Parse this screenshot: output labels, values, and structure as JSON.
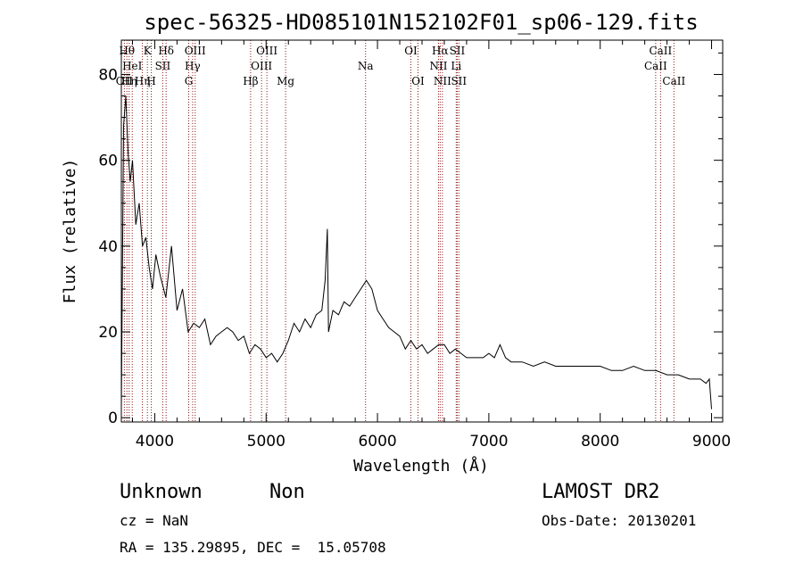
{
  "chart_data": {
    "type": "line",
    "title": "spec-56325-HD085101N152102F01_sp06-129.fits",
    "xlabel": "Wavelength (Å)",
    "ylabel": "Flux (relative)",
    "xlim": [
      3700,
      9100
    ],
    "ylim": [
      -1,
      88
    ],
    "xticks": [
      4000,
      5000,
      6000,
      7000,
      8000,
      9000
    ],
    "yticks": [
      0,
      20,
      40,
      60,
      80
    ],
    "grid": false,
    "line_color": "#000000",
    "marker_color": "#8b1a1a",
    "series": [
      {
        "x": [
          3700,
          3720,
          3740,
          3760,
          3780,
          3800,
          3830,
          3860,
          3890,
          3920,
          3950,
          3980,
          4010,
          4050,
          4100,
          4150,
          4200,
          4250,
          4300,
          4350,
          4400,
          4450,
          4500,
          4550,
          4600,
          4650,
          4700,
          4750,
          4800,
          4850,
          4900,
          4950,
          5000,
          5050,
          5100,
          5150,
          5200,
          5250,
          5300,
          5350,
          5400,
          5450,
          5500,
          5530,
          5550,
          5560,
          5600,
          5650,
          5700,
          5750,
          5800,
          5850,
          5900,
          5950,
          6000,
          6050,
          6100,
          6150,
          6200,
          6250,
          6300,
          6350,
          6400,
          6450,
          6500,
          6550,
          6600,
          6650,
          6700,
          6750,
          6800,
          6850,
          6900,
          6950,
          7000,
          7050,
          7100,
          7150,
          7200,
          7300,
          7400,
          7500,
          7600,
          7700,
          7800,
          7900,
          8000,
          8100,
          8200,
          8300,
          8400,
          8500,
          8600,
          8700,
          8800,
          8900,
          8950,
          8980,
          9000
        ],
        "y": [
          2,
          68,
          75,
          62,
          55,
          60,
          45,
          50,
          40,
          42,
          35,
          30,
          38,
          33,
          28,
          40,
          25,
          30,
          20,
          22,
          21,
          23,
          17,
          19,
          20,
          21,
          20,
          18,
          19,
          15,
          17,
          16,
          14,
          15,
          13,
          15,
          18,
          22,
          20,
          23,
          21,
          24,
          25,
          32,
          44,
          20,
          25,
          24,
          27,
          26,
          28,
          30,
          32,
          30,
          25,
          23,
          21,
          20,
          19,
          16,
          18,
          16,
          17,
          15,
          16,
          17,
          17,
          15,
          16,
          15,
          14,
          14,
          14,
          14,
          15,
          14,
          17,
          14,
          13,
          13,
          12,
          13,
          12,
          12,
          12,
          12,
          12,
          11,
          11,
          12,
          11,
          11,
          10,
          10,
          9,
          9,
          8,
          9,
          2
        ]
      }
    ],
    "lines": [
      {
        "w": 3727,
        "label": "OII",
        "row": 2
      },
      {
        "w": 3750,
        "label": "Hθ",
        "row": 0
      },
      {
        "w": 3770,
        "label": "Hη",
        "row": 2
      },
      {
        "w": 3798,
        "label": "HeI",
        "row": 1
      },
      {
        "w": 3889,
        "label": "Hη",
        "row": 2
      },
      {
        "w": 3934,
        "label": "K",
        "row": 0
      },
      {
        "w": 3969,
        "label": "H",
        "row": 2
      },
      {
        "w": 4072,
        "label": "SII",
        "row": 1
      },
      {
        "w": 4102,
        "label": "Hδ",
        "row": 0
      },
      {
        "w": 4305,
        "label": "G",
        "row": 2
      },
      {
        "w": 4340,
        "label": "Hγ",
        "row": 1
      },
      {
        "w": 4363,
        "label": "OIII",
        "row": 0
      },
      {
        "w": 4861,
        "label": "Hβ",
        "row": 2
      },
      {
        "w": 4959,
        "label": "OIII",
        "row": 1
      },
      {
        "w": 5007,
        "label": "OIII",
        "row": 0
      },
      {
        "w": 5175,
        "label": "Mg",
        "row": 2
      },
      {
        "w": 5893,
        "label": "Na",
        "row": 1
      },
      {
        "w": 6300,
        "label": "OI",
        "row": 0
      },
      {
        "w": 6364,
        "label": "OI",
        "row": 2
      },
      {
        "w": 6548,
        "label": "NII",
        "row": 1
      },
      {
        "w": 6563,
        "label": "Hα",
        "row": 0
      },
      {
        "w": 6583,
        "label": "NII",
        "row": 2
      },
      {
        "w": 6707,
        "label": "Li",
        "row": 1
      },
      {
        "w": 6716,
        "label": "SII",
        "row": 0
      },
      {
        "w": 6731,
        "label": "SII",
        "row": 2
      },
      {
        "w": 8498,
        "label": "CaII",
        "row": 1
      },
      {
        "w": 8542,
        "label": "CaII",
        "row": 0
      },
      {
        "w": 8662,
        "label": "CaII",
        "row": 2
      }
    ]
  },
  "footer": {
    "object_class": "Unknown",
    "object_subclass": "Non",
    "cz": "cz = NaN",
    "coords": "RA = 135.29895, DEC =  15.05708",
    "survey": "LAMOST DR2",
    "obs_date": "Obs-Date: 20130201"
  }
}
